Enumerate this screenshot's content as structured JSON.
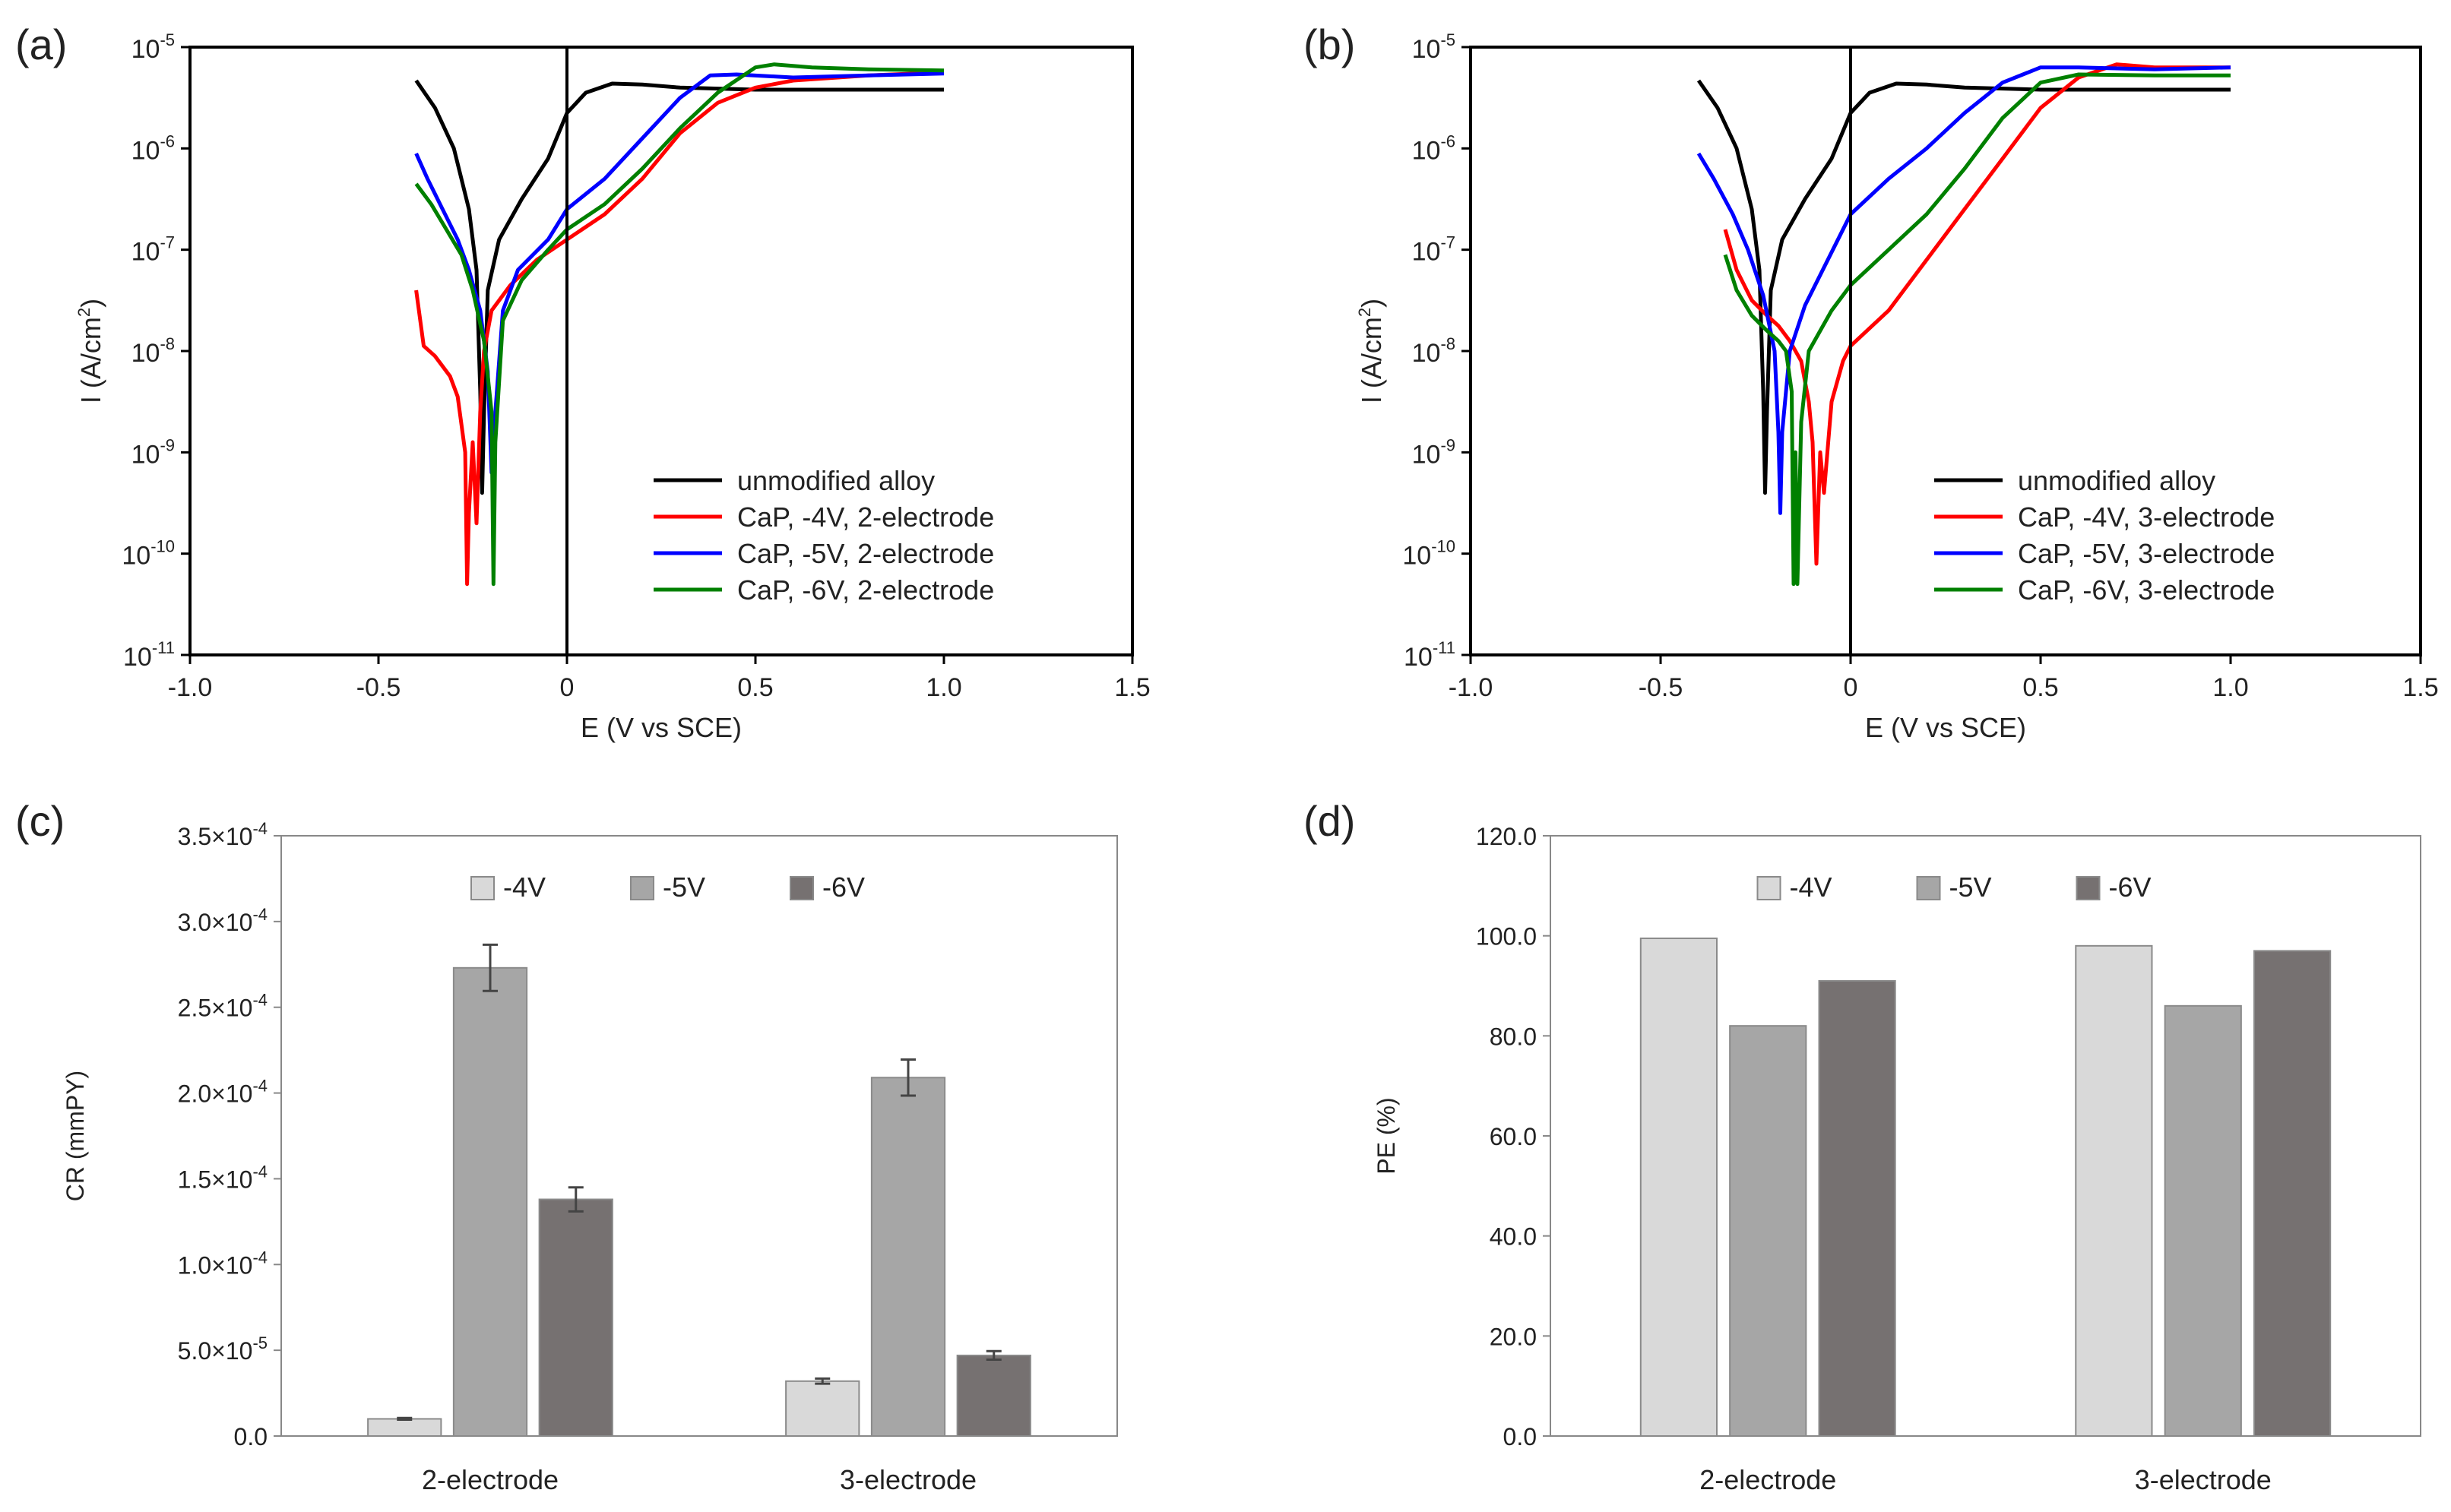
{
  "chart_data": [
    {
      "panel": "(a)",
      "type": "line",
      "xlabel": "E (V vs SCE)",
      "ylabel_main": "I (A/cm",
      "ylabel_sup": "2",
      "ylabel_close": ")",
      "yscale": "log",
      "xlim": [
        -1.0,
        1.5
      ],
      "ylim_exp": [
        -11,
        -5
      ],
      "x_ticks": [
        "-1.0",
        "-0.5",
        "0",
        "0.5",
        "1.0",
        "1.5"
      ],
      "y_ticks": [
        {
          "base": "10",
          "exp": "-11"
        },
        {
          "base": "10",
          "exp": "-10"
        },
        {
          "base": "10",
          "exp": "-9"
        },
        {
          "base": "10",
          "exp": "-8"
        },
        {
          "base": "10",
          "exp": "-7"
        },
        {
          "base": "10",
          "exp": "-6"
        },
        {
          "base": "10",
          "exp": "-5"
        }
      ],
      "legend_position": "lower-right",
      "series": [
        {
          "name": "unmodified alloy",
          "color": "#000000",
          "points": [
            [
              -0.4,
              -5.33
            ],
            [
              -0.35,
              -5.6
            ],
            [
              -0.3,
              -6.0
            ],
            [
              -0.26,
              -6.6
            ],
            [
              -0.24,
              -7.2
            ],
            [
              -0.23,
              -8.4
            ],
            [
              -0.225,
              -9.4
            ],
            [
              -0.22,
              -8.6
            ],
            [
              -0.21,
              -7.4
            ],
            [
              -0.18,
              -6.9
            ],
            [
              -0.12,
              -6.5
            ],
            [
              -0.05,
              -6.1
            ],
            [
              0.0,
              -5.65
            ],
            [
              0.05,
              -5.45
            ],
            [
              0.12,
              -5.36
            ],
            [
              0.2,
              -5.37
            ],
            [
              0.3,
              -5.4
            ],
            [
              0.5,
              -5.42
            ],
            [
              0.7,
              -5.42
            ],
            [
              1.0,
              -5.42
            ]
          ]
        },
        {
          "name": "CaP, -4V, 2-electrode",
          "color": "#ff0000",
          "points": [
            [
              -0.4,
              -7.4
            ],
            [
              -0.38,
              -7.95
            ],
            [
              -0.35,
              -8.05
            ],
            [
              -0.33,
              -8.15
            ],
            [
              -0.31,
              -8.25
            ],
            [
              -0.29,
              -8.45
            ],
            [
              -0.27,
              -9.0
            ],
            [
              -0.265,
              -10.3
            ],
            [
              -0.26,
              -9.6
            ],
            [
              -0.25,
              -8.9
            ],
            [
              -0.24,
              -9.7
            ],
            [
              -0.23,
              -8.6
            ],
            [
              -0.22,
              -8.0
            ],
            [
              -0.2,
              -7.6
            ],
            [
              -0.15,
              -7.35
            ],
            [
              -0.08,
              -7.1
            ],
            [
              0.0,
              -6.9
            ],
            [
              0.1,
              -6.65
            ],
            [
              0.2,
              -6.3
            ],
            [
              0.3,
              -5.85
            ],
            [
              0.4,
              -5.55
            ],
            [
              0.5,
              -5.4
            ],
            [
              0.6,
              -5.33
            ],
            [
              0.8,
              -5.28
            ],
            [
              1.0,
              -5.25
            ]
          ]
        },
        {
          "name": "CaP, -5V, 2-electrode",
          "color": "#0000ff",
          "points": [
            [
              -0.4,
              -6.05
            ],
            [
              -0.37,
              -6.3
            ],
            [
              -0.33,
              -6.6
            ],
            [
              -0.29,
              -6.9
            ],
            [
              -0.26,
              -7.2
            ],
            [
              -0.23,
              -7.6
            ],
            [
              -0.21,
              -8.2
            ],
            [
              -0.2,
              -9.2
            ],
            [
              -0.19,
              -8.6
            ],
            [
              -0.17,
              -7.6
            ],
            [
              -0.13,
              -7.2
            ],
            [
              -0.05,
              -6.9
            ],
            [
              0.0,
              -6.6
            ],
            [
              0.1,
              -6.3
            ],
            [
              0.2,
              -5.9
            ],
            [
              0.3,
              -5.5
            ],
            [
              0.38,
              -5.28
            ],
            [
              0.45,
              -5.27
            ],
            [
              0.6,
              -5.3
            ],
            [
              0.8,
              -5.28
            ],
            [
              1.0,
              -5.26
            ]
          ]
        },
        {
          "name": "CaP, -6V, 2-electrode",
          "color": "#008000",
          "points": [
            [
              -0.4,
              -6.35
            ],
            [
              -0.36,
              -6.55
            ],
            [
              -0.32,
              -6.8
            ],
            [
              -0.28,
              -7.05
            ],
            [
              -0.25,
              -7.4
            ],
            [
              -0.22,
              -7.9
            ],
            [
              -0.2,
              -8.6
            ],
            [
              -0.195,
              -10.3
            ],
            [
              -0.19,
              -8.9
            ],
            [
              -0.17,
              -7.7
            ],
            [
              -0.12,
              -7.3
            ],
            [
              -0.05,
              -7.0
            ],
            [
              0.0,
              -6.8
            ],
            [
              0.1,
              -6.55
            ],
            [
              0.2,
              -6.2
            ],
            [
              0.3,
              -5.8
            ],
            [
              0.4,
              -5.45
            ],
            [
              0.5,
              -5.2
            ],
            [
              0.55,
              -5.17
            ],
            [
              0.65,
              -5.2
            ],
            [
              0.8,
              -5.22
            ],
            [
              1.0,
              -5.23
            ]
          ]
        }
      ]
    },
    {
      "panel": "(b)",
      "type": "line",
      "xlabel": "E (V vs SCE)",
      "ylabel_main": "I (A/cm",
      "ylabel_sup": "2",
      "ylabel_close": ")",
      "yscale": "log",
      "xlim": [
        -1.0,
        1.5
      ],
      "ylim_exp": [
        -11,
        -5
      ],
      "x_ticks": [
        "-1.0",
        "-0.5",
        "0",
        "0.5",
        "1.0",
        "1.5"
      ],
      "y_ticks": [
        {
          "base": "10",
          "exp": "-11"
        },
        {
          "base": "10",
          "exp": "-10"
        },
        {
          "base": "10",
          "exp": "-9"
        },
        {
          "base": "10",
          "exp": "-8"
        },
        {
          "base": "10",
          "exp": "-7"
        },
        {
          "base": "10",
          "exp": "-6"
        },
        {
          "base": "10",
          "exp": "-5"
        }
      ],
      "legend_position": "lower-right",
      "series": [
        {
          "name": "unmodified alloy",
          "color": "#000000",
          "points": [
            [
              -0.4,
              -5.33
            ],
            [
              -0.35,
              -5.6
            ],
            [
              -0.3,
              -6.0
            ],
            [
              -0.26,
              -6.6
            ],
            [
              -0.24,
              -7.2
            ],
            [
              -0.23,
              -8.4
            ],
            [
              -0.225,
              -9.4
            ],
            [
              -0.22,
              -8.6
            ],
            [
              -0.21,
              -7.4
            ],
            [
              -0.18,
              -6.9
            ],
            [
              -0.12,
              -6.5
            ],
            [
              -0.05,
              -6.1
            ],
            [
              0.0,
              -5.65
            ],
            [
              0.05,
              -5.45
            ],
            [
              0.12,
              -5.36
            ],
            [
              0.2,
              -5.37
            ],
            [
              0.3,
              -5.4
            ],
            [
              0.5,
              -5.42
            ],
            [
              0.7,
              -5.42
            ],
            [
              1.0,
              -5.42
            ]
          ]
        },
        {
          "name": "CaP, -4V, 3-electrode",
          "color": "#ff0000",
          "points": [
            [
              -0.33,
              -6.8
            ],
            [
              -0.3,
              -7.2
            ],
            [
              -0.26,
              -7.5
            ],
            [
              -0.22,
              -7.65
            ],
            [
              -0.19,
              -7.75
            ],
            [
              -0.16,
              -7.9
            ],
            [
              -0.13,
              -8.1
            ],
            [
              -0.11,
              -8.5
            ],
            [
              -0.1,
              -8.9
            ],
            [
              -0.09,
              -10.1
            ],
            [
              -0.08,
              -9.0
            ],
            [
              -0.07,
              -9.4
            ],
            [
              -0.05,
              -8.5
            ],
            [
              -0.02,
              -8.1
            ],
            [
              0.0,
              -7.95
            ],
            [
              0.1,
              -7.6
            ],
            [
              0.2,
              -7.1
            ],
            [
              0.3,
              -6.6
            ],
            [
              0.4,
              -6.1
            ],
            [
              0.5,
              -5.6
            ],
            [
              0.6,
              -5.3
            ],
            [
              0.7,
              -5.17
            ],
            [
              0.8,
              -5.2
            ],
            [
              1.0,
              -5.2
            ]
          ]
        },
        {
          "name": "CaP, -5V, 3-electrode",
          "color": "#0000ff",
          "points": [
            [
              -0.4,
              -6.05
            ],
            [
              -0.36,
              -6.3
            ],
            [
              -0.31,
              -6.65
            ],
            [
              -0.27,
              -7.0
            ],
            [
              -0.23,
              -7.45
            ],
            [
              -0.2,
              -8.0
            ],
            [
              -0.19,
              -8.8
            ],
            [
              -0.185,
              -9.6
            ],
            [
              -0.18,
              -8.8
            ],
            [
              -0.16,
              -8.0
            ],
            [
              -0.12,
              -7.55
            ],
            [
              -0.06,
              -7.1
            ],
            [
              0.0,
              -6.65
            ],
            [
              0.1,
              -6.3
            ],
            [
              0.2,
              -6.0
            ],
            [
              0.3,
              -5.65
            ],
            [
              0.4,
              -5.35
            ],
            [
              0.5,
              -5.2
            ],
            [
              0.6,
              -5.2
            ],
            [
              0.8,
              -5.22
            ],
            [
              1.0,
              -5.2
            ]
          ]
        },
        {
          "name": "CaP, -6V, 3-electrode",
          "color": "#008000",
          "points": [
            [
              -0.33,
              -7.05
            ],
            [
              -0.3,
              -7.4
            ],
            [
              -0.26,
              -7.65
            ],
            [
              -0.22,
              -7.8
            ],
            [
              -0.19,
              -7.9
            ],
            [
              -0.17,
              -8.0
            ],
            [
              -0.155,
              -8.4
            ],
            [
              -0.15,
              -10.3
            ],
            [
              -0.145,
              -9.0
            ],
            [
              -0.14,
              -10.3
            ],
            [
              -0.13,
              -8.7
            ],
            [
              -0.11,
              -8.0
            ],
            [
              -0.05,
              -7.6
            ],
            [
              0.0,
              -7.35
            ],
            [
              0.1,
              -7.0
            ],
            [
              0.2,
              -6.65
            ],
            [
              0.3,
              -6.2
            ],
            [
              0.4,
              -5.7
            ],
            [
              0.5,
              -5.35
            ],
            [
              0.6,
              -5.27
            ],
            [
              0.8,
              -5.28
            ],
            [
              1.0,
              -5.28
            ]
          ]
        }
      ]
    },
    {
      "panel": "(c)",
      "type": "bar",
      "ylabel": "CR (mmPY)",
      "categories": [
        "2-electrode",
        "3-electrode"
      ],
      "ylim": [
        0,
        0.00035
      ],
      "y_ticks": [
        {
          "mant": "0.0",
          "exp": ""
        },
        {
          "mant": "5.0",
          "exp": "-5"
        },
        {
          "mant": "1.0",
          "exp": "-4"
        },
        {
          "mant": "1.5",
          "exp": "-4"
        },
        {
          "mant": "2.0",
          "exp": "-4"
        },
        {
          "mant": "2.5",
          "exp": "-4"
        },
        {
          "mant": "3.0",
          "exp": "-4"
        },
        {
          "mant": "3.5",
          "exp": "-4"
        }
      ],
      "times": "×10",
      "legend_position": "top-center",
      "series": [
        {
          "name": "-4V",
          "color": "#d9d9d9",
          "values": [
            1e-05,
            3.2e-05
          ],
          "errors": [
            5e-07,
            1.5e-06
          ]
        },
        {
          "name": "-5V",
          "color": "#a6a6a6",
          "values": [
            0.000273,
            0.000209
          ],
          "errors": [
            1.35e-05,
            1.05e-05
          ]
        },
        {
          "name": "-6V",
          "color": "#767171",
          "values": [
            0.000138,
            4.7e-05
          ],
          "errors": [
            7e-06,
            2.5e-06
          ]
        }
      ]
    },
    {
      "panel": "(d)",
      "type": "bar",
      "ylabel": "PE (%)",
      "categories": [
        "2-electrode",
        "3-electrode"
      ],
      "ylim": [
        0,
        120
      ],
      "y_ticks": [
        "0.0",
        "20.0",
        "40.0",
        "60.0",
        "80.0",
        "100.0",
        "120.0"
      ],
      "legend_position": "top-center",
      "series": [
        {
          "name": "-4V",
          "color": "#d9d9d9",
          "values": [
            99.5,
            98.0
          ]
        },
        {
          "name": "-5V",
          "color": "#a6a6a6",
          "values": [
            82.0,
            86.0
          ]
        },
        {
          "name": "-6V",
          "color": "#767171",
          "values": [
            91.0,
            97.0
          ]
        }
      ]
    }
  ]
}
